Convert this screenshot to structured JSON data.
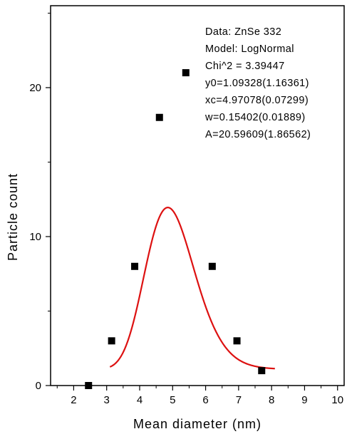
{
  "chart_data": {
    "type": "scatter",
    "title": "",
    "xlabel": "Mean diameter (nm)",
    "ylabel": "Particle count",
    "xlim": [
      1.3,
      10.2
    ],
    "ylim": [
      0,
      25.5
    ],
    "x_ticks": [
      2,
      3,
      4,
      5,
      6,
      7,
      8,
      9,
      10
    ],
    "y_ticks": [
      0,
      10,
      20
    ],
    "grid": false,
    "colors": {
      "points": "#000000",
      "fit": "#dd1111",
      "axes": "#000000"
    },
    "series": [
      {
        "type": "scatter",
        "marker": "square",
        "x": [
          2.45,
          3.15,
          3.85,
          4.6,
          5.4,
          6.2,
          6.95,
          7.7
        ],
        "y": [
          0,
          3,
          8,
          18,
          21,
          8,
          3,
          1
        ]
      },
      {
        "type": "line",
        "model": "LogNormal",
        "params": {
          "y0": 1.09328,
          "xc": 4.97078,
          "w": 0.15402,
          "A": 20.59609
        },
        "x_range": [
          3.1,
          8.1
        ]
      }
    ],
    "annotations": [
      "Data: ZnSe 332",
      "Model: LogNormal",
      "Chi^2 = 3.39447",
      "y0=1.09328(1.16361)",
      "xc=4.97078(0.07299)",
      "w=0.15402(0.01889)",
      "A=20.59609(1.86562)"
    ]
  }
}
